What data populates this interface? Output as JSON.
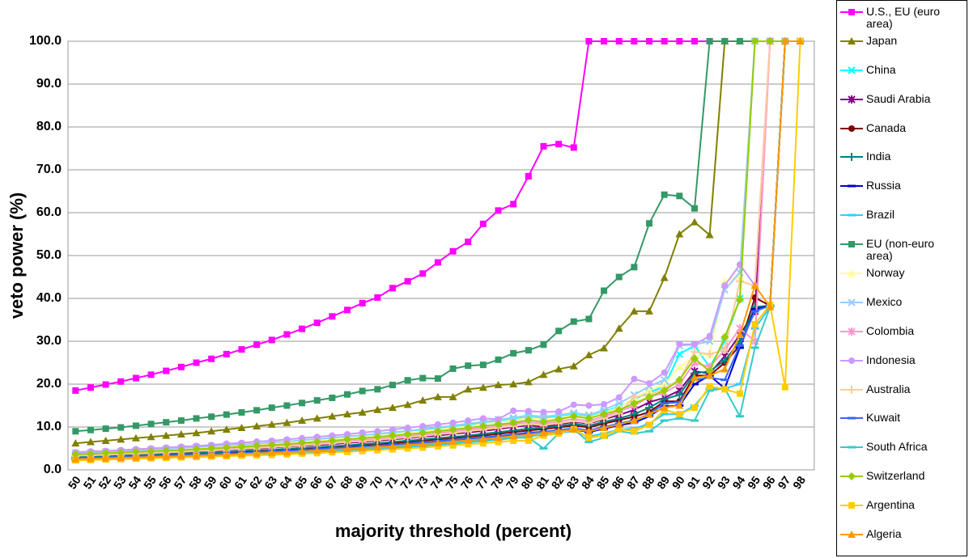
{
  "chart_data": {
    "type": "line",
    "x_label": "majority threshold (percent)",
    "y_label": "veto power (%)",
    "categories": [
      "50",
      "51",
      "52",
      "53",
      "54",
      "55",
      "56",
      "57",
      "58",
      "59",
      "60",
      "61",
      "62",
      "63",
      "64",
      "65",
      "66",
      "67",
      "68",
      "69",
      "70",
      "71",
      "72",
      "73",
      "74",
      "75",
      "76",
      "77",
      "78",
      "79",
      "80",
      "81",
      "82",
      "83",
      "84",
      "85",
      "86",
      "87",
      "88",
      "89",
      "90",
      "91",
      "92",
      "93",
      "94",
      "95",
      "96",
      "97",
      "98"
    ],
    "ylim": [
      0,
      100
    ],
    "yticks": [
      {
        "value": 0,
        "label": "0.0"
      },
      {
        "value": 10,
        "label": "10.0"
      },
      {
        "value": 20,
        "label": "20.0"
      },
      {
        "value": 30,
        "label": "30.0"
      },
      {
        "value": 40,
        "label": "40.0"
      },
      {
        "value": 50,
        "label": "50.0"
      },
      {
        "value": 60,
        "label": "60.0"
      },
      {
        "value": 70,
        "label": "70.0"
      },
      {
        "value": 80,
        "label": "80.0"
      },
      {
        "value": 90,
        "label": "90.0"
      },
      {
        "value": 100,
        "label": "100.0"
      }
    ],
    "grid": true,
    "legend": "right",
    "series": [
      {
        "name": "U.S., EU (euro area)",
        "color": "#ff00ff",
        "marker": "square",
        "values": [
          18.5,
          19.2,
          19.9,
          20.6,
          21.4,
          22.2,
          23.1,
          24,
          25,
          25.9,
          27,
          28.1,
          29.2,
          30.3,
          31.6,
          32.9,
          34.3,
          35.8,
          37.3,
          38.9,
          40.2,
          42.4,
          44,
          45.8,
          48.4,
          51,
          53.2,
          57.4,
          60.5,
          62,
          68.5,
          75.5,
          76,
          75.2,
          100,
          100,
          100,
          100,
          100,
          100,
          100,
          100,
          100,
          100,
          100,
          100,
          100,
          100,
          100
        ]
      },
      {
        "name": "Japan",
        "color": "#808000",
        "marker": "triangle",
        "values": [
          6.2,
          6.5,
          6.8,
          7.1,
          7.4,
          7.7,
          8,
          8.3,
          8.6,
          9,
          9.4,
          9.8,
          10.2,
          10.6,
          11,
          11.5,
          12,
          12.5,
          13,
          13.4,
          14,
          14.5,
          15.2,
          16.2,
          17,
          17,
          18.8,
          19.2,
          19.8,
          20,
          20.5,
          22.2,
          23.5,
          24.2,
          26.8,
          28.4,
          33,
          37,
          37,
          44.8,
          55,
          57.8,
          54.8,
          100,
          100,
          100,
          100,
          100,
          100
        ]
      },
      {
        "name": "China",
        "color": "#00ffff",
        "marker": "x",
        "values": [
          3.8,
          3.9,
          4.1,
          4.2,
          4.4,
          4.6,
          4.7,
          4.9,
          5.1,
          5.3,
          5.5,
          5.7,
          5.9,
          6.2,
          6.4,
          6.7,
          6.9,
          7.2,
          7.5,
          7.8,
          8.1,
          8.5,
          8.8,
          9.2,
          9.6,
          10,
          10.4,
          10.9,
          11.3,
          11.8,
          12.3,
          12,
          12.4,
          12.9,
          12.4,
          13.5,
          14.8,
          16.5,
          18,
          19.5,
          27,
          29,
          24,
          30,
          40,
          100,
          100,
          100,
          100
        ]
      },
      {
        "name": "Saudi Arabia",
        "color": "#800080",
        "marker": "star",
        "values": [
          3.2,
          3.3,
          3.4,
          3.6,
          3.7,
          3.8,
          4,
          4.1,
          4.3,
          4.4,
          4.6,
          4.8,
          5,
          5.2,
          5.4,
          5.6,
          5.8,
          6,
          6.3,
          6.5,
          6.8,
          7.1,
          7.4,
          7.7,
          8,
          8.4,
          8.7,
          9.1,
          9.5,
          10,
          10.4,
          10.1,
          10.6,
          11.2,
          10.8,
          11.8,
          12.8,
          14,
          15.8,
          16.8,
          18.5,
          23,
          22.5,
          26.5,
          31.5,
          37,
          100,
          100,
          100
        ]
      },
      {
        "name": "Canada",
        "color": "#800000",
        "marker": "circle",
        "values": [
          2.9,
          3,
          3.1,
          3.2,
          3.3,
          3.4,
          3.5,
          3.7,
          3.8,
          3.9,
          4.1,
          4.2,
          4.4,
          4.5,
          4.7,
          4.9,
          5.1,
          5.3,
          5.5,
          5.7,
          6,
          6.2,
          6.5,
          6.8,
          7.1,
          7.4,
          7.7,
          8,
          8.4,
          8.8,
          9.2,
          9.5,
          9.9,
          10.3,
          9.9,
          10.8,
          11.6,
          12.4,
          13.5,
          16,
          16,
          22,
          22,
          25,
          29,
          40.2,
          38.3,
          100,
          100
        ]
      },
      {
        "name": "India",
        "color": "#008080",
        "marker": "plus",
        "values": [
          3,
          3.1,
          3.2,
          3.3,
          3.4,
          3.5,
          3.7,
          3.8,
          3.9,
          4.1,
          4.2,
          4.4,
          4.6,
          4.7,
          4.9,
          5.1,
          5.3,
          5.5,
          5.7,
          6,
          6.2,
          6.5,
          6.8,
          7.1,
          7.4,
          7.7,
          8,
          8.4,
          8.8,
          9.2,
          9.6,
          9.8,
          10.2,
          10.7,
          10.3,
          11.2,
          12,
          13,
          14.5,
          16.5,
          17.5,
          22.5,
          23,
          25.5,
          30,
          38,
          38.3,
          100,
          100
        ]
      },
      {
        "name": "Russia",
        "color": "#0000cc",
        "marker": "dash",
        "values": [
          2.6,
          2.7,
          2.8,
          2.9,
          3,
          3.1,
          3.2,
          3.3,
          3.4,
          3.5,
          3.7,
          3.8,
          3.9,
          4.1,
          4.2,
          4.4,
          4.6,
          4.8,
          5,
          5.2,
          5.4,
          5.6,
          5.9,
          6.1,
          6.4,
          6.7,
          7,
          7.3,
          7.6,
          8,
          8.4,
          8.7,
          9,
          9.4,
          8.8,
          9.6,
          10.4,
          11,
          12.5,
          14.8,
          15,
          20,
          22,
          19,
          28.5,
          37.5,
          38.3,
          100,
          100
        ]
      },
      {
        "name": "Brazil",
        "color": "#33ccff",
        "marker": "dash",
        "values": [
          2.3,
          2.4,
          2.5,
          2.6,
          2.7,
          2.8,
          2.9,
          3,
          3.1,
          3.2,
          3.3,
          3.4,
          3.5,
          3.7,
          3.8,
          4,
          4.1,
          4.3,
          4.5,
          4.7,
          4.9,
          5.1,
          5.3,
          5.6,
          5.8,
          6.1,
          6.4,
          6.7,
          7,
          7.4,
          7.8,
          8.2,
          8.6,
          9,
          7.8,
          8.5,
          9.4,
          9.6,
          10.8,
          13,
          13,
          15,
          19,
          19,
          20,
          33,
          38,
          100,
          100
        ]
      },
      {
        "name": "EU (non-euro area)",
        "color": "#339966",
        "marker": "square",
        "values": [
          9,
          9.3,
          9.6,
          9.9,
          10.3,
          10.7,
          11.1,
          11.5,
          12,
          12.4,
          12.9,
          13.4,
          13.9,
          14.5,
          15,
          15.6,
          16.2,
          16.8,
          17.6,
          18.4,
          18.8,
          19.8,
          20.9,
          21.4,
          21.3,
          23.6,
          24.3,
          24.5,
          25.7,
          27.2,
          27.9,
          29.2,
          32.4,
          34.6,
          35.2,
          41.8,
          45,
          47.3,
          57.5,
          64.2,
          63.9,
          61,
          100,
          100,
          100,
          100,
          100,
          100,
          100
        ]
      },
      {
        "name": "Norway",
        "color": "#ffff99",
        "marker": "triangle",
        "values": [
          3.7,
          3.8,
          4,
          4.1,
          4.3,
          4.5,
          4.6,
          4.8,
          5,
          5.2,
          5.4,
          5.6,
          5.8,
          6.1,
          6.3,
          6.6,
          6.8,
          7.1,
          7.4,
          7.7,
          8,
          8.3,
          8.7,
          9,
          9.4,
          9.8,
          10.2,
          10.7,
          11.1,
          11.6,
          12.1,
          11.8,
          12.2,
          12.7,
          12.2,
          13.3,
          14.6,
          16.8,
          18.5,
          20,
          24,
          26.5,
          27,
          44,
          45.2,
          100,
          100,
          100,
          100
        ]
      },
      {
        "name": "Mexico",
        "color": "#99ccff",
        "marker": "x",
        "values": [
          3.9,
          4,
          4.2,
          4.3,
          4.5,
          4.7,
          4.9,
          5.1,
          5.3,
          5.5,
          5.7,
          5.9,
          6.1,
          6.4,
          6.6,
          6.9,
          7.2,
          7.5,
          7.8,
          8.1,
          8.4,
          8.8,
          9.1,
          9.5,
          9.9,
          10.3,
          10.8,
          11.2,
          11.7,
          12.2,
          12.7,
          12.4,
          12.8,
          13.3,
          12.8,
          14,
          15.5,
          17.5,
          19.5,
          21,
          29,
          29.2,
          30,
          42,
          46,
          100,
          100,
          100,
          100
        ]
      },
      {
        "name": "Colombia",
        "color": "#ff99cc",
        "marker": "star",
        "values": [
          3.4,
          3.5,
          3.6,
          3.8,
          3.9,
          4,
          4.2,
          4.3,
          4.5,
          4.7,
          4.9,
          5.1,
          5.3,
          5.5,
          5.7,
          5.9,
          6.2,
          6.4,
          6.7,
          7,
          7.3,
          7.6,
          7.9,
          8.2,
          8.6,
          9,
          9.4,
          9.8,
          10.2,
          10.7,
          11.1,
          10.8,
          11.3,
          11.9,
          11.4,
          12.5,
          13.6,
          15,
          17,
          18,
          20,
          25,
          24,
          28,
          33,
          30,
          100,
          100,
          100
        ]
      },
      {
        "name": "Indonesia",
        "color": "#cc99ff",
        "marker": "circle",
        "values": [
          4.1,
          4.3,
          4.4,
          4.6,
          4.8,
          5,
          5.2,
          5.4,
          5.6,
          5.8,
          6.1,
          6.3,
          6.6,
          6.8,
          7.1,
          7.4,
          7.7,
          8,
          8.3,
          8.7,
          9,
          9.4,
          9.8,
          10.2,
          10.6,
          11,
          11.5,
          12,
          11.8,
          13.8,
          13.7,
          13.5,
          13.6,
          15.2,
          15,
          15.3,
          16.9,
          21.2,
          20.2,
          22.7,
          29.3,
          29.3,
          31.2,
          43,
          47.9,
          43,
          100,
          100,
          100
        ]
      },
      {
        "name": "Australia",
        "color": "#ffcc99",
        "marker": "plus",
        "values": [
          3.3,
          3.4,
          3.5,
          3.7,
          3.8,
          3.9,
          4.1,
          4.2,
          4.4,
          4.5,
          4.7,
          4.9,
          5.1,
          5.3,
          5.5,
          5.7,
          6,
          6.2,
          6.5,
          6.7,
          7,
          7.3,
          7.6,
          7.9,
          8.3,
          8.6,
          9,
          9.4,
          9.8,
          10.2,
          10.7,
          10.4,
          10.9,
          11.4,
          11,
          12,
          13.2,
          17,
          17.5,
          19,
          21,
          27.5,
          27,
          28,
          44,
          43,
          100,
          100,
          100
        ]
      },
      {
        "name": "Kuwait",
        "color": "#3366ff",
        "marker": "dash",
        "values": [
          2.7,
          2.8,
          2.9,
          3,
          3.1,
          3.2,
          3.3,
          3.4,
          3.5,
          3.7,
          3.8,
          3.9,
          4.1,
          4.3,
          4.4,
          4.6,
          4.8,
          5,
          5.2,
          5.4,
          5.6,
          5.9,
          6.1,
          6.4,
          6.7,
          7,
          7.3,
          7.6,
          7.9,
          8.3,
          8.7,
          8.9,
          9.3,
          9.7,
          9.2,
          10,
          10.8,
          11.6,
          13,
          15.5,
          15.8,
          21,
          21.5,
          21,
          29,
          37,
          38.3,
          100,
          100
        ]
      },
      {
        "name": "South Africa",
        "color": "#33cccc",
        "marker": "dash",
        "values": [
          2.4,
          2.5,
          2.6,
          2.7,
          2.8,
          2.9,
          3,
          3.1,
          3.2,
          3.3,
          3.4,
          3.6,
          3.7,
          3.8,
          4,
          4.1,
          4.3,
          4.5,
          4.7,
          4.9,
          5.1,
          5.3,
          5.5,
          5.8,
          6,
          6.3,
          6.6,
          6.9,
          7.2,
          7.5,
          7.5,
          5,
          8.5,
          9.5,
          6.5,
          7.5,
          9,
          8.5,
          9,
          11.5,
          12,
          11.5,
          18.5,
          19,
          12.5,
          28.5,
          38,
          100,
          100
        ]
      },
      {
        "name": "Switzerland",
        "color": "#99cc00",
        "marker": "diamond",
        "values": [
          3.6,
          3.7,
          3.9,
          4,
          4.2,
          4.3,
          4.5,
          4.6,
          4.8,
          5,
          5.2,
          5.4,
          5.6,
          5.8,
          6,
          6.3,
          6.5,
          6.8,
          7.1,
          7.4,
          7.7,
          8,
          8.3,
          8.6,
          9,
          9.4,
          9.8,
          10.2,
          10.6,
          11,
          11.6,
          11.2,
          11.8,
          12.5,
          12,
          13,
          14,
          15.5,
          17,
          18.5,
          21,
          26,
          23,
          31,
          39.7,
          100,
          100,
          100,
          100
        ]
      },
      {
        "name": "Argentina",
        "color": "#ffcc00",
        "marker": "square",
        "values": [
          2.2,
          2.3,
          2.4,
          2.5,
          2.6,
          2.7,
          2.8,
          2.9,
          3,
          3.1,
          3.2,
          3.3,
          3.4,
          3.5,
          3.6,
          3.8,
          3.9,
          4.1,
          4.2,
          4.4,
          4.6,
          4.8,
          5,
          5.2,
          5.5,
          5.7,
          6,
          6.2,
          6.5,
          6.8,
          6.8,
          8,
          8.5,
          9.5,
          7.5,
          8,
          9.5,
          9,
          10.5,
          14,
          13,
          14.5,
          19.5,
          18.8,
          17.8,
          34,
          38.5,
          19.3,
          100
        ]
      },
      {
        "name": "Algeria",
        "color": "#ff9900",
        "marker": "triangle",
        "values": [
          2.5,
          2.6,
          2.7,
          2.8,
          2.9,
          3,
          3.1,
          3.2,
          3.3,
          3.4,
          3.5,
          3.7,
          3.8,
          4,
          4.1,
          4.3,
          4.5,
          4.7,
          4.9,
          5.1,
          5.3,
          5.5,
          5.8,
          6,
          6.3,
          6.6,
          6.9,
          7.2,
          7.5,
          7.9,
          8.2,
          8.6,
          9,
          9.4,
          9,
          9.8,
          10.6,
          11.5,
          13,
          14.5,
          15,
          21.5,
          22,
          23.5,
          31.5,
          43,
          38,
          100,
          100
        ]
      }
    ]
  }
}
